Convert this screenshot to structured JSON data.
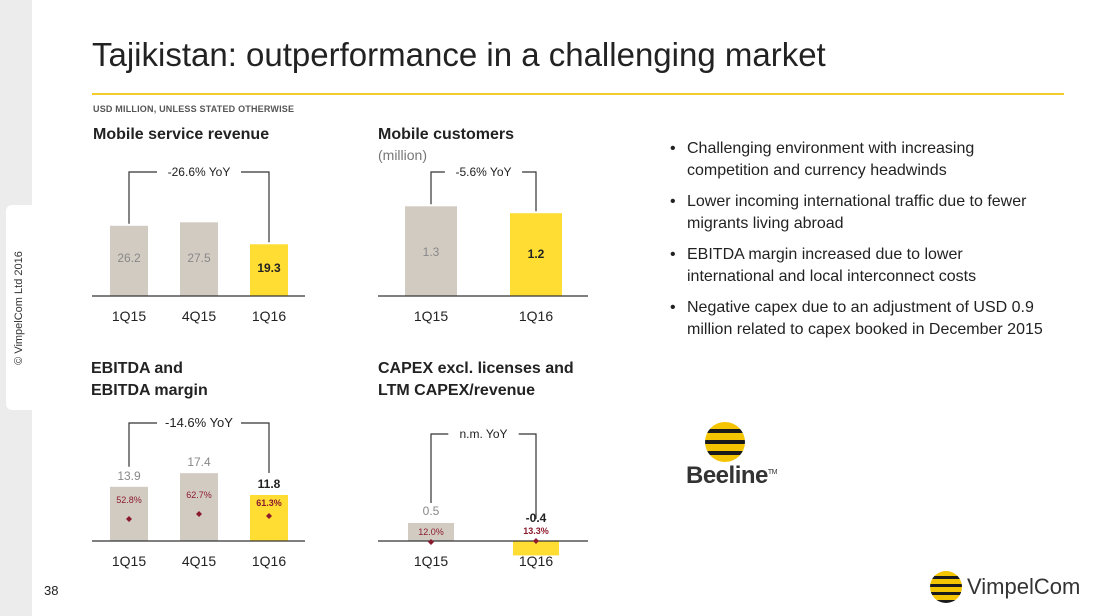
{
  "copyright": "© VimpelCom Ltd 2016",
  "page_number": "38",
  "title": "Tajikistan: outperformance in a challenging market",
  "units_note": "USD MILLION, UNLESS STATED OTHERWISE",
  "colors": {
    "accent": "#f5cc2a",
    "bar_gray": "#d2cbc2",
    "bar_yellow": "#ffdd33",
    "margin_red": "#8b1a2e"
  },
  "bullets": [
    "Challenging environment with increasing competition and currency headwinds",
    "Lower incoming international traffic due to fewer migrants living abroad",
    "EBITDA margin increased due to lower international and local interconnect costs",
    "Negative capex due to an adjustment of USD 0.9 million related to capex booked in December 2015"
  ],
  "logos": {
    "beeline": "Beeline",
    "beeline_tm": "TM",
    "vimpelcom": "VimpelCom"
  },
  "chart_data": [
    {
      "id": "revenue",
      "type": "bar",
      "title": "Mobile service revenue",
      "categories": [
        "1Q15",
        "4Q15",
        "1Q16"
      ],
      "values": [
        26.2,
        27.5,
        19.3
      ],
      "labels": [
        "26.2",
        "27.5",
        "19.3"
      ],
      "highlight": [
        false,
        false,
        true
      ],
      "annotation": "-26.6% YoY",
      "bracket": [
        0,
        2
      ]
    },
    {
      "id": "customers",
      "type": "bar",
      "title": "Mobile customers",
      "subtitle": "(million)",
      "categories": [
        "1Q15",
        "1Q16"
      ],
      "values": [
        1.3,
        1.2
      ],
      "labels": [
        "1.3",
        "1.2"
      ],
      "highlight": [
        false,
        true
      ],
      "annotation": "-5.6% YoY",
      "bracket": [
        0,
        1
      ]
    },
    {
      "id": "ebitda",
      "type": "bar",
      "title": [
        "EBITDA and",
        "EBITDA margin"
      ],
      "categories": [
        "1Q15",
        "4Q15",
        "1Q16"
      ],
      "values": [
        13.9,
        17.4,
        11.8
      ],
      "labels": [
        "13.9",
        "17.4",
        "11.8"
      ],
      "highlight": [
        false,
        false,
        true
      ],
      "margins": [
        "52.8%",
        "62.7%",
        "61.3%"
      ],
      "annotation": "-14.6% YoY",
      "bracket": [
        0,
        2
      ]
    },
    {
      "id": "capex",
      "type": "bar",
      "title": [
        "CAPEX excl. licenses and",
        "LTM CAPEX/revenue"
      ],
      "categories": [
        "1Q15",
        "1Q16"
      ],
      "values": [
        0.5,
        -0.4
      ],
      "labels": [
        "0.5",
        "-0.4"
      ],
      "highlight": [
        false,
        true
      ],
      "margins": [
        "12.0%",
        "13.3%"
      ],
      "annotation": "n.m. YoY",
      "bracket": [
        0,
        1
      ]
    }
  ]
}
